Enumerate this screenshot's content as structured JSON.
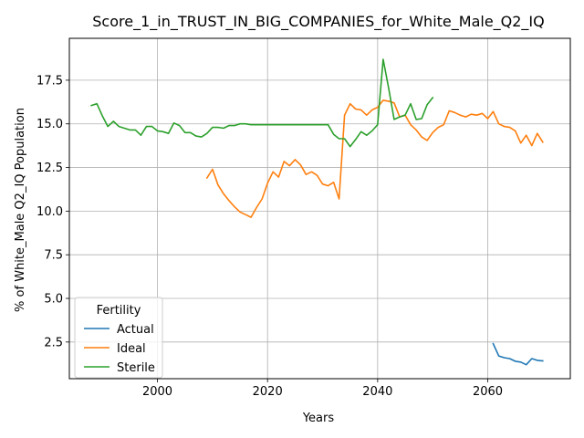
{
  "chart_data": {
    "type": "line",
    "title": "Score_1_in_TRUST_IN_BIG_COMPANIES_for_White_Male_Q2_IQ",
    "xlabel": "Years",
    "ylabel": "% of White_Male Q2_IQ Population",
    "xlim": [
      1984,
      2075
    ],
    "ylim": [
      0.4,
      19.9
    ],
    "xticks": [
      2000,
      2020,
      2040,
      2060
    ],
    "yticks": [
      2.5,
      5.0,
      7.5,
      10.0,
      12.5,
      15.0,
      17.5
    ],
    "xtick_labels": [
      "2000",
      "2020",
      "2040",
      "2060"
    ],
    "ytick_labels": [
      "2.5",
      "5.0",
      "7.5",
      "10.0",
      "12.5",
      "15.0",
      "17.5"
    ],
    "grid": true,
    "legend": {
      "title": "Fertility",
      "placement": "lower-left"
    },
    "series": [
      {
        "name": "Actual",
        "color": "#1f77b4",
        "x": [
          2061,
          2062,
          2063,
          2064,
          2065,
          2066,
          2067,
          2068,
          2069,
          2070
        ],
        "y": [
          2.4,
          1.7,
          1.6,
          1.55,
          1.4,
          1.35,
          1.2,
          1.55,
          1.45,
          1.42
        ]
      },
      {
        "name": "Ideal",
        "color": "#ff7f0e",
        "x": [
          2009,
          2010,
          2011,
          2012,
          2013,
          2014,
          2015,
          2016,
          2017,
          2018,
          2019,
          2020,
          2021,
          2022,
          2023,
          2024,
          2025,
          2026,
          2027,
          2028,
          2029,
          2030,
          2031,
          2032,
          2033,
          2034,
          2035,
          2036,
          2037,
          2038,
          2039,
          2040,
          2041,
          2042,
          2043,
          2044,
          2045,
          2046,
          2047,
          2048,
          2049,
          2050,
          2051,
          2052,
          2053,
          2054,
          2055,
          2056,
          2057,
          2058,
          2059,
          2060,
          2061,
          2062,
          2063,
          2064,
          2065,
          2066,
          2067,
          2068,
          2069,
          2070
        ],
        "y": [
          11.9,
          12.4,
          11.5,
          11.0,
          10.6,
          10.25,
          9.95,
          9.8,
          9.65,
          10.2,
          10.7,
          11.6,
          12.25,
          11.95,
          12.85,
          12.6,
          12.95,
          12.65,
          12.1,
          12.25,
          12.05,
          11.55,
          11.45,
          11.65,
          10.7,
          15.5,
          16.15,
          15.85,
          15.8,
          15.5,
          15.8,
          15.95,
          16.35,
          16.3,
          16.2,
          15.4,
          15.5,
          14.95,
          14.65,
          14.25,
          14.05,
          14.5,
          14.8,
          14.95,
          15.75,
          15.65,
          15.5,
          15.4,
          15.55,
          15.5,
          15.6,
          15.3,
          15.7,
          15.0,
          14.85,
          14.8,
          14.6,
          13.9,
          14.35,
          13.75,
          14.45,
          13.95
        ]
      },
      {
        "name": "Sterile",
        "color": "#2ca02c",
        "x": [
          1988,
          1989,
          1990,
          1991,
          1992,
          1993,
          1994,
          1995,
          1996,
          1997,
          1998,
          1999,
          2000,
          2001,
          2002,
          2003,
          2004,
          2005,
          2006,
          2007,
          2008,
          2009,
          2010,
          2011,
          2012,
          2013,
          2014,
          2015,
          2016,
          2017,
          2018,
          2019,
          2020,
          2021,
          2022,
          2023,
          2024,
          2025,
          2026,
          2027,
          2028,
          2029,
          2030,
          2031,
          2032,
          2033,
          2034,
          2035,
          2036,
          2037,
          2038,
          2039,
          2040,
          2041,
          2042,
          2043,
          2044,
          2045,
          2046,
          2047,
          2048,
          2049,
          2050
        ],
        "y": [
          16.05,
          16.15,
          15.45,
          14.85,
          15.15,
          14.85,
          14.75,
          14.65,
          14.65,
          14.35,
          14.85,
          14.85,
          14.6,
          14.55,
          14.45,
          15.05,
          14.9,
          14.5,
          14.5,
          14.3,
          14.25,
          14.45,
          14.8,
          14.8,
          14.75,
          14.9,
          14.9,
          15.0,
          15.0,
          14.95,
          14.95,
          14.95,
          14.95,
          14.95,
          14.95,
          14.95,
          14.95,
          14.95,
          14.95,
          14.95,
          14.95,
          14.95,
          14.95,
          14.95,
          14.4,
          14.15,
          14.15,
          13.7,
          14.1,
          14.55,
          14.35,
          14.6,
          14.95,
          18.7,
          17.05,
          15.25,
          15.4,
          15.5,
          16.15,
          15.25,
          15.3,
          16.1,
          16.5
        ]
      }
    ]
  }
}
